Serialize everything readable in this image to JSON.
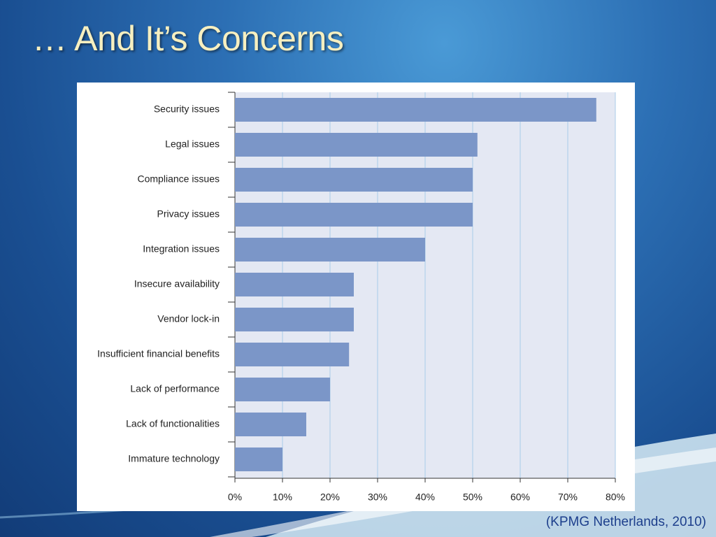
{
  "slide_title": "… And It’s Concerns",
  "source": "(KPMG Netherlands, 2010)",
  "chart_data": {
    "type": "barh",
    "categories": [
      "Security issues",
      "Legal issues",
      "Compliance issues",
      "Privacy issues",
      "Integration issues",
      "Insecure availability",
      "Vendor lock-in",
      "Insufficient financial benefits",
      "Lack of performance",
      "Lack of functionalities",
      "Immature technology"
    ],
    "values": [
      76,
      51,
      50,
      50,
      40,
      25,
      25,
      24,
      20,
      15,
      10
    ],
    "color": "#7b96c8",
    "xlim": [
      0,
      80
    ],
    "xticks": [
      {
        "value": 0,
        "label": "0%"
      },
      {
        "value": 10,
        "label": "10%"
      },
      {
        "value": 20,
        "label": "20%"
      },
      {
        "value": 30,
        "label": "30%"
      },
      {
        "value": 40,
        "label": "40%"
      },
      {
        "value": 50,
        "label": "50%"
      },
      {
        "value": 60,
        "label": "60%"
      },
      {
        "value": 70,
        "label": "70%"
      },
      {
        "value": 80,
        "label": "80%"
      }
    ],
    "grid": true
  }
}
